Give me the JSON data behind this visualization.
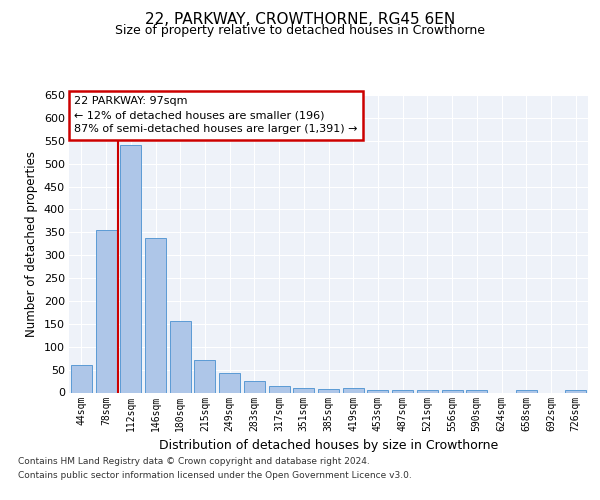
{
  "title": "22, PARKWAY, CROWTHORNE, RG45 6EN",
  "subtitle": "Size of property relative to detached houses in Crowthorne",
  "xlabel": "Distribution of detached houses by size in Crowthorne",
  "ylabel": "Number of detached properties",
  "bar_color": "#aec6e8",
  "bar_edge_color": "#5b9bd5",
  "categories": [
    "44sqm",
    "78sqm",
    "112sqm",
    "146sqm",
    "180sqm",
    "215sqm",
    "249sqm",
    "283sqm",
    "317sqm",
    "351sqm",
    "385sqm",
    "419sqm",
    "453sqm",
    "487sqm",
    "521sqm",
    "556sqm",
    "590sqm",
    "624sqm",
    "658sqm",
    "692sqm",
    "726sqm"
  ],
  "values": [
    60,
    355,
    540,
    338,
    157,
    70,
    42,
    25,
    15,
    10,
    8,
    10,
    5,
    5,
    5,
    5,
    5,
    0,
    5,
    0,
    5
  ],
  "ylim": [
    0,
    650
  ],
  "yticks": [
    0,
    50,
    100,
    150,
    200,
    250,
    300,
    350,
    400,
    450,
    500,
    550,
    600,
    650
  ],
  "annotation_line1": "22 PARKWAY: 97sqm",
  "annotation_line2": "← 12% of detached houses are smaller (196)",
  "annotation_line3": "87% of semi-detached houses are larger (1,391) →",
  "annotation_box_color": "#ffffff",
  "annotation_box_edge": "#cc0000",
  "red_line_color": "#cc0000",
  "footer_line1": "Contains HM Land Registry data © Crown copyright and database right 2024.",
  "footer_line2": "Contains public sector information licensed under the Open Government Licence v3.0.",
  "background_color": "#eef2f9",
  "grid_color": "#ffffff",
  "fig_bg_color": "#ffffff",
  "title_fontsize": 11,
  "subtitle_fontsize": 9
}
